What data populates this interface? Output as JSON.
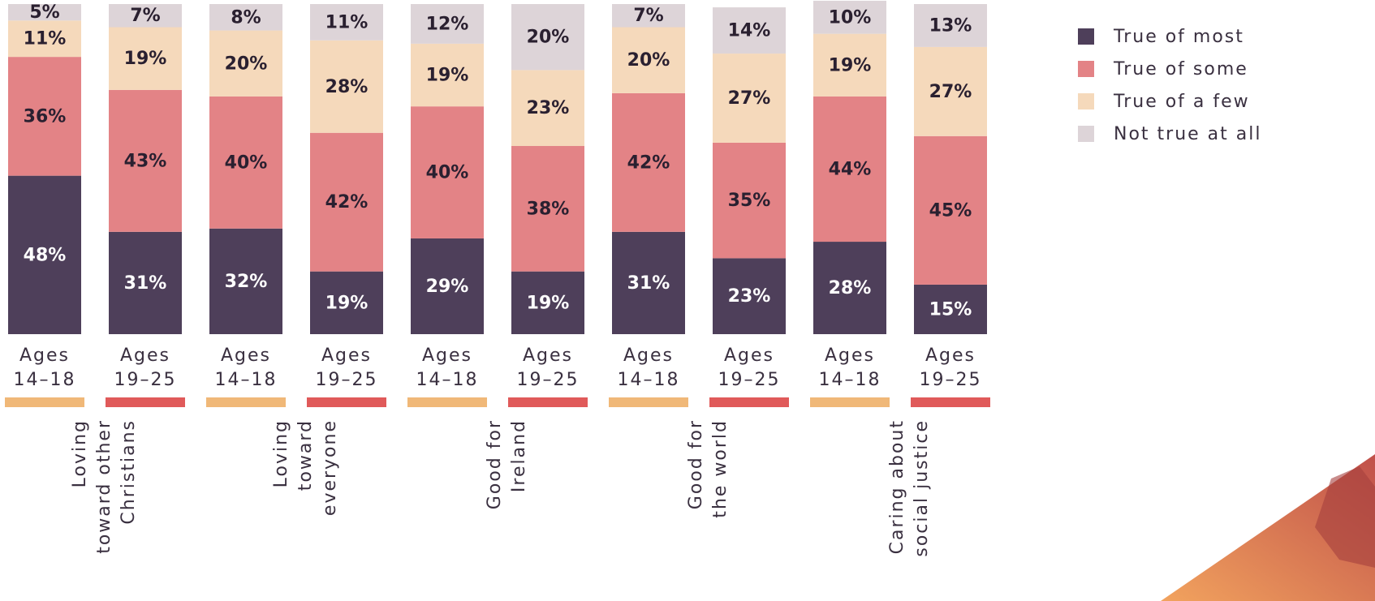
{
  "chart_data": {
    "type": "stacked_bar",
    "categories": [
      "Ages\n14–18",
      "Ages\n19–25",
      "Ages\n14–18",
      "Ages\n19–25",
      "Ages\n14–18",
      "Ages\n19–25",
      "Ages\n14–18",
      "Ages\n19–25",
      "Ages\n14–18",
      "Ages\n19–25"
    ],
    "category_colors": [
      "#f0b878",
      "#e05a5a",
      "#f0b878",
      "#e05a5a",
      "#f0b878",
      "#e05a5a",
      "#f0b878",
      "#e05a5a",
      "#f0b878",
      "#e05a5a"
    ],
    "groups": [
      "Loving\ntoward other\nChristians",
      "Loving\ntoward\neveryone",
      "Good for\nIreland",
      "Good for\nthe world",
      "Caring about\nsocial justice"
    ],
    "ylim": [
      0,
      100
    ],
    "legend": "top-right",
    "series": [
      {
        "name": "True of most",
        "color": "#4e3f5a",
        "label_color": "#ffffff",
        "values": [
          48,
          31,
          32,
          19,
          29,
          19,
          31,
          23,
          28,
          15
        ],
        "value_labels": [
          "48%",
          "31%",
          "32%",
          "19%",
          "29%",
          "19%",
          "31%",
          "23%",
          "28%",
          "15%"
        ]
      },
      {
        "name": "True of some",
        "color": "#e38386",
        "label_color": "#2a2030",
        "values": [
          36,
          43,
          40,
          42,
          40,
          38,
          42,
          35,
          44,
          45
        ],
        "value_labels": [
          "36%",
          "43%",
          "40%",
          "42%",
          "40%",
          "38%",
          "42%",
          "35%",
          "44%",
          "45%"
        ]
      },
      {
        "name": "True of a few",
        "color": "#f5d9bb",
        "label_color": "#2a2030",
        "values": [
          11,
          19,
          20,
          28,
          19,
          23,
          20,
          27,
          19,
          27
        ],
        "value_labels": [
          "11%",
          "19%",
          "20%",
          "28%",
          "19%",
          "23%",
          "20%",
          "27%",
          "19%",
          "27%"
        ]
      },
      {
        "name": "Not true at all",
        "color": "#ddd4d8",
        "label_color": "#2a2030",
        "values": [
          5,
          7,
          8,
          11,
          12,
          20,
          7,
          14,
          10,
          13
        ],
        "value_labels": [
          "5%",
          "7%",
          "8%",
          "11%",
          "12%",
          "20%",
          "7%",
          "14%",
          "10%",
          "13%"
        ]
      }
    ]
  }
}
